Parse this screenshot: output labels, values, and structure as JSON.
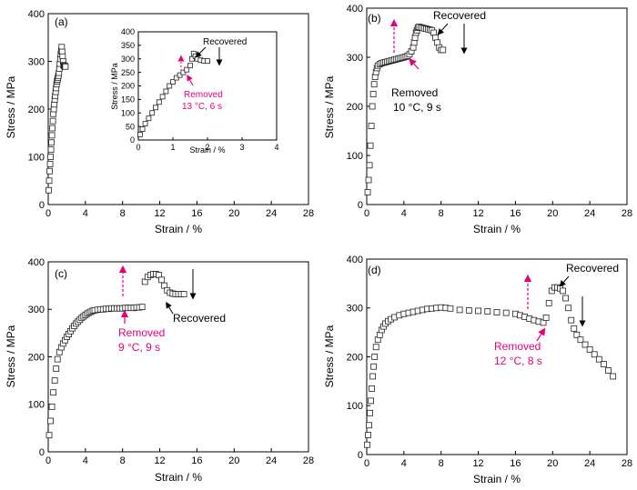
{
  "chart_data": [
    {
      "id": "a",
      "type": "scatter",
      "panel_label": "(a)",
      "xlabel": "Strain / %",
      "ylabel": "Stress / MPa",
      "xlim": [
        0,
        28
      ],
      "ylim": [
        0,
        400
      ],
      "xticks": [
        0,
        4,
        8,
        12,
        16,
        20,
        24,
        28
      ],
      "yticks": [
        0,
        100,
        200,
        300,
        400
      ],
      "series": [
        {
          "marker": "open-square",
          "x": [
            0.05,
            0.1,
            0.15,
            0.2,
            0.25,
            0.3,
            0.35,
            0.4,
            0.45,
            0.5,
            0.55,
            0.6,
            0.65,
            0.7,
            0.75,
            0.8,
            0.85,
            0.9,
            0.95,
            1.0,
            1.05,
            1.1,
            1.15,
            1.2,
            1.25,
            1.3,
            1.35,
            1.4,
            1.45,
            1.5,
            1.55,
            1.6,
            1.65,
            1.7,
            1.75,
            1.8,
            1.85
          ],
          "y": [
            30,
            50,
            70,
            85,
            100,
            115,
            130,
            145,
            160,
            175,
            190,
            200,
            210,
            220,
            228,
            236,
            244,
            252,
            258,
            262,
            266,
            270,
            276,
            285,
            295,
            305,
            315,
            322,
            330,
            320,
            310,
            300,
            292,
            290,
            290,
            290,
            289
          ]
        }
      ],
      "inset": {
        "xlabel": "Strain / %",
        "ylabel": "Stress / MPa",
        "xlim": [
          0,
          4
        ],
        "ylim": [
          0,
          400
        ],
        "xticks": [
          0,
          1,
          2,
          3,
          4
        ],
        "yticks": [
          0,
          50,
          100,
          150,
          200,
          250,
          300,
          350,
          400
        ],
        "x": [
          0.05,
          0.12,
          0.2,
          0.3,
          0.4,
          0.5,
          0.6,
          0.7,
          0.8,
          0.9,
          1.0,
          1.1,
          1.2,
          1.3,
          1.4,
          1.5,
          1.55,
          1.6,
          1.65,
          1.7,
          1.8,
          1.9,
          2.0
        ],
        "y": [
          20,
          40,
          60,
          80,
          100,
          120,
          140,
          160,
          180,
          200,
          215,
          230,
          240,
          250,
          260,
          275,
          300,
          320,
          310,
          300,
          295,
          292,
          292
        ],
        "annotations": [
          {
            "text": "Recovered",
            "color": "#000000"
          },
          {
            "text": "Removed",
            "color": "#e6007e"
          },
          {
            "text": "13 °C, 6 s",
            "color": "#e6007e"
          }
        ]
      }
    },
    {
      "id": "b",
      "type": "scatter",
      "panel_label": "(b)",
      "xlabel": "Strain / %",
      "ylabel": "Stress / MPa",
      "xlim": [
        0,
        28
      ],
      "ylim": [
        0,
        400
      ],
      "xticks": [
        0,
        4,
        8,
        12,
        16,
        20,
        24,
        28
      ],
      "yticks": [
        0,
        100,
        200,
        300,
        400
      ],
      "series": [
        {
          "marker": "open-square",
          "x": [
            0.1,
            0.2,
            0.3,
            0.4,
            0.5,
            0.6,
            0.7,
            0.8,
            0.9,
            1.0,
            1.1,
            1.2,
            1.4,
            1.6,
            1.8,
            2.0,
            2.2,
            2.4,
            2.6,
            2.8,
            3.0,
            3.2,
            3.4,
            3.6,
            3.8,
            4.0,
            4.2,
            4.4,
            4.6,
            4.8,
            5.0,
            5.1,
            5.2,
            5.3,
            5.4,
            5.5,
            5.6,
            5.8,
            6.0,
            6.2,
            6.4,
            6.6,
            6.8,
            7.0,
            7.2,
            7.4,
            7.6,
            7.8,
            8.0,
            8.2
          ],
          "y": [
            25,
            50,
            80,
            120,
            160,
            200,
            225,
            245,
            260,
            270,
            278,
            283,
            286,
            288,
            289,
            290,
            291,
            292,
            293,
            294,
            295,
            296,
            297,
            298,
            299,
            300,
            301,
            303,
            306,
            312,
            320,
            330,
            340,
            350,
            355,
            360,
            362,
            361,
            360,
            359,
            358,
            357,
            356,
            355,
            350,
            340,
            330,
            320,
            315,
            315
          ]
        }
      ],
      "annotations": [
        {
          "text": "Recovered",
          "color": "#000000"
        },
        {
          "text": "Removed",
          "color": "#000000"
        },
        {
          "text": "10 °C, 9 s",
          "color": "#000000"
        }
      ]
    },
    {
      "id": "c",
      "type": "scatter",
      "panel_label": "(c)",
      "xlabel": "Strain / %",
      "ylabel": "Stress / MPa",
      "xlim": [
        0,
        28
      ],
      "ylim": [
        0,
        400
      ],
      "xticks": [
        0,
        4,
        8,
        12,
        16,
        20,
        24,
        28
      ],
      "yticks": [
        0,
        100,
        200,
        300,
        400
      ],
      "series": [
        {
          "marker": "open-square",
          "x": [
            0.1,
            0.25,
            0.4,
            0.55,
            0.7,
            0.85,
            1.0,
            1.2,
            1.4,
            1.6,
            1.8,
            2.0,
            2.2,
            2.4,
            2.6,
            2.8,
            3.0,
            3.2,
            3.4,
            3.6,
            3.8,
            4.0,
            4.2,
            4.4,
            4.6,
            4.8,
            5.0,
            5.3,
            5.6,
            5.9,
            6.2,
            6.5,
            6.8,
            7.1,
            7.4,
            7.7,
            8.0,
            8.3,
            8.6,
            8.9,
            9.2,
            9.5,
            9.8,
            10.1,
            10.4,
            10.7,
            11.0,
            11.3,
            11.6,
            11.9,
            12.2,
            12.5,
            12.8,
            13.1,
            13.4,
            13.7,
            14.0,
            14.3,
            14.6
          ],
          "y": [
            35,
            65,
            95,
            125,
            150,
            175,
            195,
            210,
            220,
            228,
            235,
            242,
            248,
            254,
            260,
            265,
            270,
            274,
            278,
            282,
            285,
            288,
            291,
            293,
            295,
            297,
            298,
            299,
            300,
            300,
            301,
            301,
            302,
            302,
            302,
            302,
            302,
            303,
            303,
            303,
            303,
            304,
            304,
            305,
            358,
            368,
            372,
            374,
            374,
            372,
            362,
            350,
            340,
            335,
            333,
            332,
            332,
            332,
            332
          ]
        }
      ],
      "annotations": [
        {
          "text": "Recovered",
          "color": "#000000"
        },
        {
          "text": "Removed",
          "color": "#e6007e"
        },
        {
          "text": "9 °C, 9 s",
          "color": "#e6007e"
        }
      ]
    },
    {
      "id": "d",
      "type": "scatter",
      "panel_label": "(d)",
      "xlabel": "Strain / %",
      "ylabel": "Stress / MPa",
      "xlim": [
        0,
        28
      ],
      "ylim": [
        0,
        400
      ],
      "xticks": [
        0,
        4,
        8,
        12,
        16,
        20,
        24,
        28
      ],
      "yticks": [
        0,
        100,
        200,
        300,
        400
      ],
      "series": [
        {
          "marker": "open-square",
          "x": [
            0.05,
            0.15,
            0.25,
            0.35,
            0.45,
            0.55,
            0.65,
            0.75,
            0.85,
            1.0,
            1.2,
            1.4,
            1.6,
            1.8,
            2.0,
            2.3,
            2.6,
            3.0,
            3.5,
            4.0,
            4.5,
            5.0,
            5.5,
            6.0,
            6.5,
            7.0,
            7.5,
            8.0,
            8.5,
            9.0,
            10.0,
            11.0,
            12.0,
            13.0,
            14.0,
            15.0,
            16.0,
            16.5,
            17.0,
            17.5,
            18.0,
            18.5,
            19.0,
            19.3,
            19.6,
            19.9,
            20.2,
            20.5,
            20.8,
            21.1,
            21.4,
            21.7,
            22.0,
            22.3,
            22.6,
            23.0,
            23.5,
            24.0,
            24.5,
            25.0,
            25.5,
            26.0,
            26.5
          ],
          "y": [
            20,
            40,
            60,
            85,
            110,
            135,
            160,
            180,
            200,
            220,
            235,
            245,
            255,
            262,
            268,
            273,
            277,
            281,
            285,
            288,
            290,
            292,
            294,
            296,
            298,
            299,
            300,
            301,
            300,
            299,
            296,
            295,
            294,
            293,
            291,
            290,
            288,
            285,
            282,
            278,
            275,
            272,
            270,
            280,
            310,
            335,
            342,
            342,
            340,
            335,
            320,
            300,
            275,
            258,
            245,
            235,
            225,
            215,
            205,
            195,
            185,
            172,
            160
          ]
        }
      ],
      "annotations": [
        {
          "text": "Recovered",
          "color": "#000000"
        },
        {
          "text": "Removed",
          "color": "#e6007e"
        },
        {
          "text": "12 °C, 8 s",
          "color": "#e6007e"
        }
      ]
    }
  ]
}
